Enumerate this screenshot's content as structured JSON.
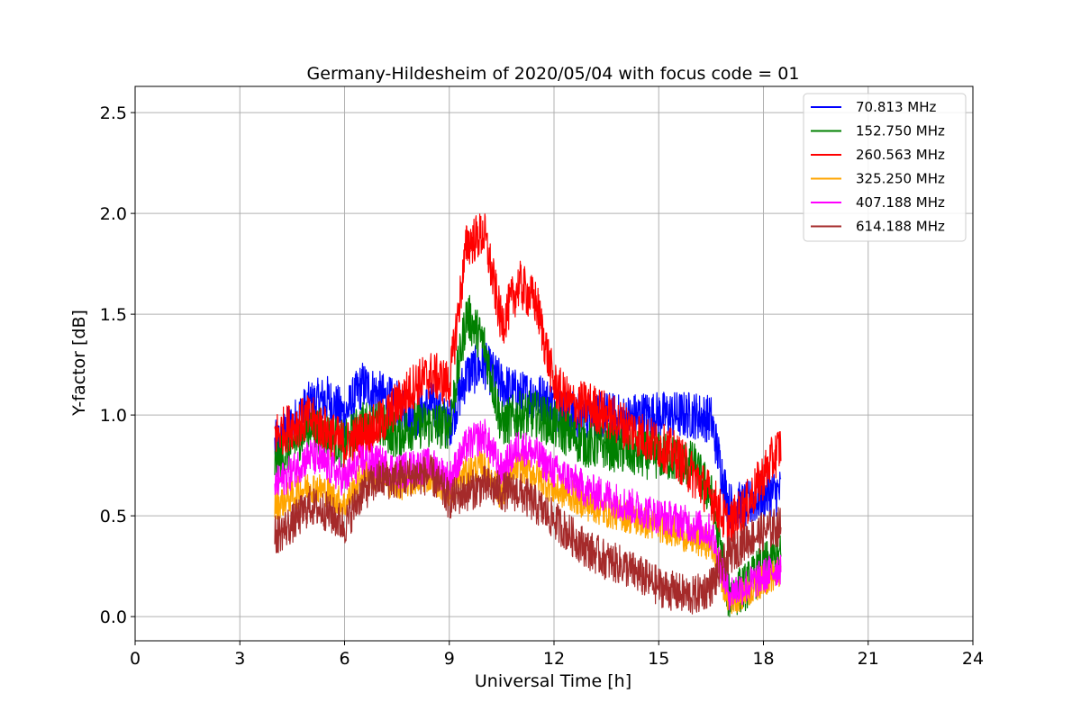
{
  "chart_data": {
    "type": "line",
    "title": "Germany-Hildesheim of 2020/05/04 with focus code = 01",
    "xlabel": "Universal Time [h]",
    "ylabel": "Y-factor [dB]",
    "xlim": [
      0,
      24
    ],
    "ylim": [
      -0.12,
      2.63
    ],
    "xticks": [
      0,
      3,
      6,
      9,
      12,
      15,
      18,
      21,
      24
    ],
    "xtick_labels": [
      "0",
      "3",
      "6",
      "9",
      "12",
      "15",
      "18",
      "21",
      "24"
    ],
    "yticks": [
      0.0,
      0.5,
      1.0,
      1.5,
      2.0,
      2.5
    ],
    "ytick_labels": [
      "0.0",
      "0.5",
      "1.0",
      "1.5",
      "2.0",
      "2.5"
    ],
    "grid": true,
    "legend_position": "top-right",
    "x": [
      4.0,
      4.5,
      5.0,
      5.5,
      6.0,
      6.5,
      7.0,
      7.5,
      8.0,
      8.5,
      9.0,
      9.5,
      10.0,
      10.5,
      11.0,
      11.5,
      12.0,
      12.5,
      13.0,
      13.5,
      14.0,
      14.5,
      15.0,
      15.5,
      16.0,
      16.5,
      17.0,
      17.5,
      18.0,
      18.5
    ],
    "series": [
      {
        "name": "70.813 MHz",
        "color": "#0000ff",
        "spread": 0.12,
        "values": [
          0.85,
          0.95,
          1.05,
          1.08,
          1.0,
          1.15,
          1.1,
          1.05,
          1.0,
          1.05,
          0.95,
          1.2,
          1.25,
          1.15,
          1.1,
          1.1,
          1.05,
          1.0,
          1.0,
          1.0,
          0.98,
          1.0,
          1.0,
          1.0,
          1.0,
          0.98,
          0.55,
          0.55,
          0.6,
          0.62
        ]
      },
      {
        "name": "152.750 MHz",
        "color": "#008000",
        "spread": 0.12,
        "values": [
          0.75,
          0.85,
          0.95,
          0.9,
          0.85,
          0.95,
          0.95,
          0.9,
          0.95,
          0.95,
          0.95,
          1.5,
          1.35,
          0.95,
          1.0,
          1.0,
          0.95,
          0.9,
          0.85,
          0.85,
          0.82,
          0.8,
          0.8,
          0.78,
          0.75,
          0.6,
          0.1,
          0.15,
          0.25,
          0.3
        ]
      },
      {
        "name": "260.563 MHz",
        "color": "#ff0000",
        "spread": 0.12,
        "values": [
          0.9,
          0.95,
          0.98,
          0.92,
          0.85,
          0.9,
          0.95,
          1.05,
          1.15,
          1.2,
          1.15,
          1.85,
          1.9,
          1.45,
          1.65,
          1.55,
          1.15,
          1.05,
          1.05,
          1.0,
          0.95,
          0.9,
          0.85,
          0.8,
          0.7,
          0.6,
          0.45,
          0.55,
          0.7,
          0.85
        ]
      },
      {
        "name": "325.250 MHz",
        "color": "#ffa500",
        "spread": 0.08,
        "values": [
          0.55,
          0.6,
          0.65,
          0.62,
          0.55,
          0.7,
          0.7,
          0.65,
          0.68,
          0.7,
          0.62,
          0.72,
          0.75,
          0.6,
          0.75,
          0.7,
          0.63,
          0.6,
          0.55,
          0.52,
          0.5,
          0.47,
          0.45,
          0.42,
          0.38,
          0.36,
          0.08,
          0.12,
          0.18,
          0.22
        ]
      },
      {
        "name": "407.188 MHz",
        "color": "#ff00ff",
        "spread": 0.09,
        "values": [
          0.65,
          0.72,
          0.8,
          0.75,
          0.68,
          0.78,
          0.76,
          0.72,
          0.74,
          0.75,
          0.68,
          0.85,
          0.9,
          0.72,
          0.85,
          0.8,
          0.72,
          0.68,
          0.62,
          0.6,
          0.56,
          0.53,
          0.5,
          0.48,
          0.45,
          0.42,
          0.12,
          0.15,
          0.2,
          0.25
        ]
      },
      {
        "name": "614.188 MHz",
        "color": "#a52a2a",
        "spread": 0.1,
        "values": [
          0.4,
          0.46,
          0.55,
          0.52,
          0.45,
          0.62,
          0.68,
          0.68,
          0.7,
          0.7,
          0.58,
          0.62,
          0.65,
          0.62,
          0.62,
          0.55,
          0.48,
          0.4,
          0.33,
          0.28,
          0.25,
          0.2,
          0.15,
          0.12,
          0.1,
          0.15,
          0.3,
          0.38,
          0.42,
          0.45
        ]
      }
    ]
  }
}
